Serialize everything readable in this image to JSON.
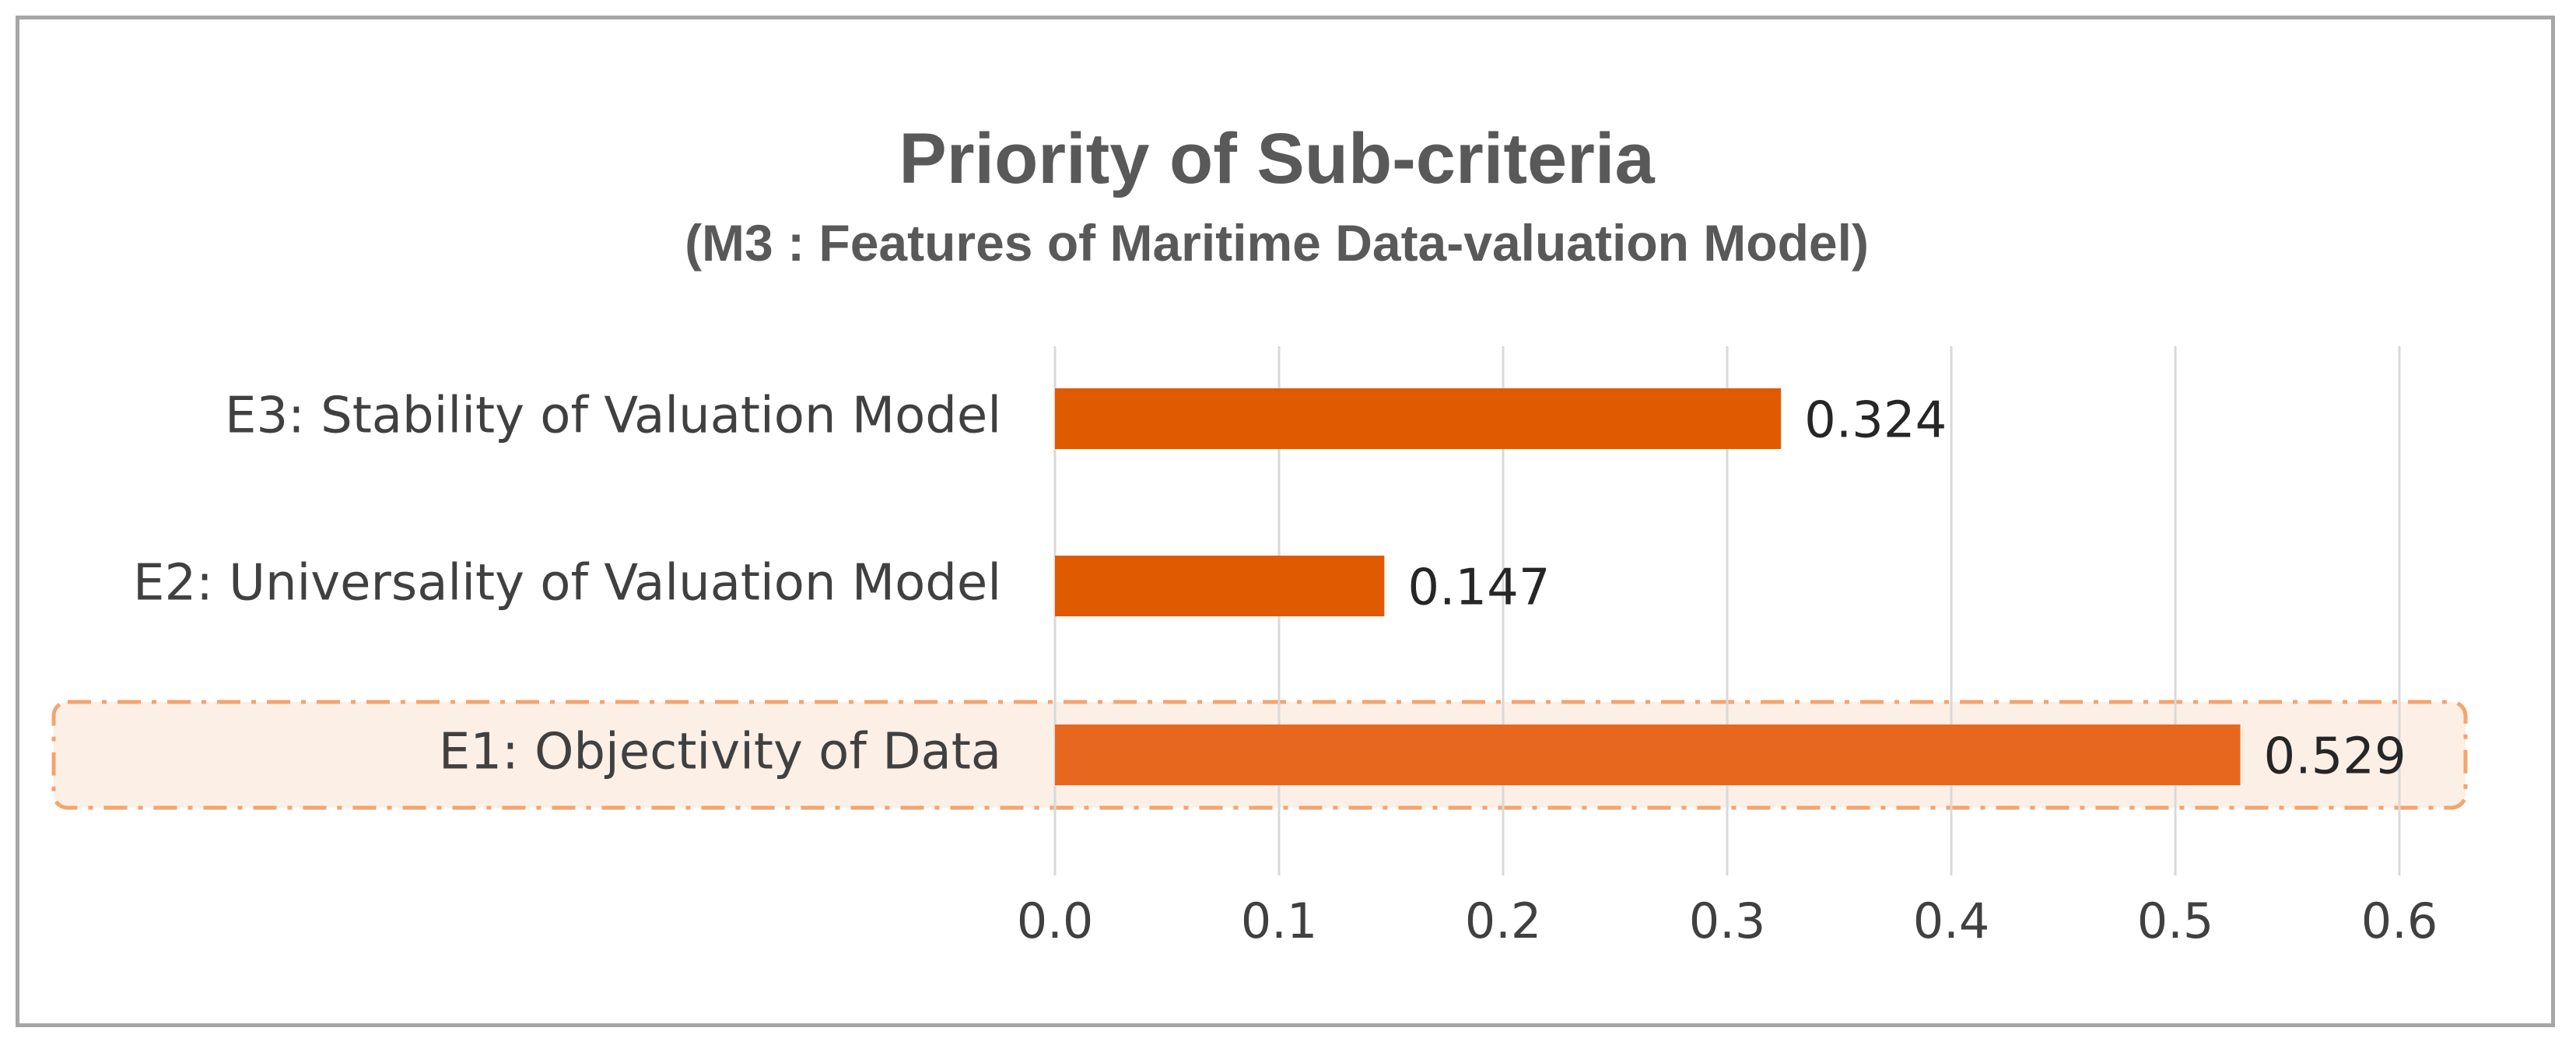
{
  "chart_data": {
    "type": "bar",
    "orientation": "horizontal",
    "title": "Priority of Sub-criteria",
    "subtitle": "(M3 : Features of Maritime Data-valuation Model)",
    "categories": [
      "E3: Stability of Valuation Model",
      "E2: Universality of Valuation Model",
      "E1: Objectivity of Data"
    ],
    "values": [
      0.324,
      0.147,
      0.529
    ],
    "value_labels": [
      "0.324",
      "0.147",
      "0.529"
    ],
    "highlighted_category": "E1: Objectivity of Data",
    "xlim": [
      0,
      0.6
    ],
    "ticks": [
      0.0,
      0.1,
      0.2,
      0.3,
      0.4,
      0.5,
      0.6
    ],
    "tick_labels": [
      "0.0",
      "0.1",
      "0.2",
      "0.3",
      "0.4",
      "0.5",
      "0.6"
    ],
    "grid": true,
    "xlabel": "",
    "ylabel": "",
    "colors": {
      "bar": "#e05a00",
      "bar_highlight": "#e8671f",
      "highlight_fill": "#fcefe6",
      "highlight_border": "#f4a46e",
      "grid": "#d9d9d9",
      "title": "#595959"
    }
  }
}
